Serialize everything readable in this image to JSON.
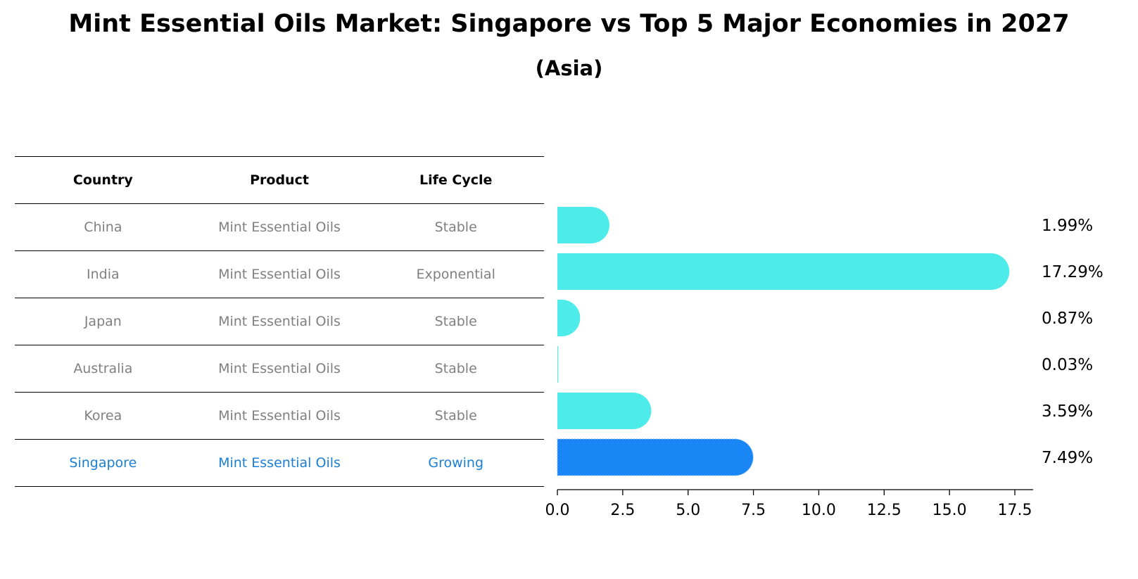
{
  "title": "Mint Essential Oils Market: Singapore vs Top 5 Major Economies in 2027",
  "subtitle": "(Asia)",
  "table": {
    "headers": [
      "Country",
      "Product",
      "Life Cycle"
    ],
    "rows": [
      {
        "country": "China",
        "product": "Mint Essential Oils",
        "life_cycle": "Stable",
        "highlight": false
      },
      {
        "country": "India",
        "product": "Mint Essential Oils",
        "life_cycle": "Exponential",
        "highlight": false
      },
      {
        "country": "Japan",
        "product": "Mint Essential Oils",
        "life_cycle": "Stable",
        "highlight": false
      },
      {
        "country": "Australia",
        "product": "Mint Essential Oils",
        "life_cycle": "Stable",
        "highlight": false
      },
      {
        "country": "Korea",
        "product": "Mint Essential Oils",
        "life_cycle": "Stable",
        "highlight": false
      },
      {
        "country": "Singapore",
        "product": "Mint Essential Oils",
        "life_cycle": "Growing",
        "highlight": true
      }
    ]
  },
  "chart_data": {
    "type": "bar",
    "orientation": "horizontal",
    "categories": [
      "China",
      "India",
      "Japan",
      "Australia",
      "Korea",
      "Singapore"
    ],
    "values": [
      1.99,
      17.29,
      0.87,
      0.03,
      3.59,
      7.49
    ],
    "value_labels": [
      "1.99%",
      "17.29%",
      "0.87%",
      "0.03%",
      "3.59%",
      "7.49%"
    ],
    "xlim": [
      0,
      18.2
    ],
    "xticks": [
      0.0,
      2.5,
      5.0,
      7.5,
      10.0,
      12.5,
      15.0,
      17.5
    ],
    "xtick_labels": [
      "0.0",
      "2.5",
      "5.0",
      "7.5",
      "10.0",
      "12.5",
      "15.0",
      "17.5"
    ],
    "colors": {
      "default": "#4deceb",
      "highlight": "#1a86f5"
    },
    "highlight_category": "Singapore"
  }
}
